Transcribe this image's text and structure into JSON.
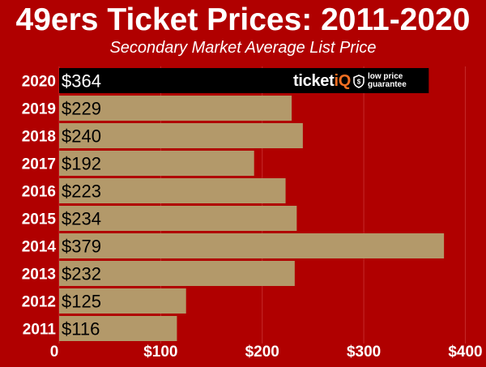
{
  "colors": {
    "background": "#b00000",
    "bar": "#b3996a",
    "highlight_bar": "#000000",
    "text": "#ffffff",
    "value_text": "#000000",
    "logo_accent": "#f36f21"
  },
  "logo": {
    "word_main": "ticket",
    "word_accent": "iQ",
    "tagline_line1": "low price",
    "tagline_line2": "guarantee"
  },
  "chart_data": {
    "type": "bar",
    "orientation": "horizontal",
    "title": "49ers Ticket Prices: 2011-2020",
    "subtitle": "Secondary Market Average List Price",
    "categories": [
      "2020",
      "2019",
      "2018",
      "2017",
      "2016",
      "2015",
      "2014",
      "2013",
      "2012",
      "2011"
    ],
    "values": [
      364,
      229,
      240,
      192,
      223,
      234,
      379,
      232,
      125,
      116
    ],
    "value_labels": [
      "$364",
      "$229",
      "$240",
      "$192",
      "$223",
      "$234",
      "$379",
      "$232",
      "$125",
      "$116"
    ],
    "highlight_index": 0,
    "xlim": [
      0,
      410
    ],
    "xticks": [
      0,
      100,
      200,
      300,
      400
    ],
    "xtick_labels": [
      "0",
      "$100",
      "$200",
      "$300",
      "$400"
    ],
    "grid": true,
    "legend": "none"
  }
}
